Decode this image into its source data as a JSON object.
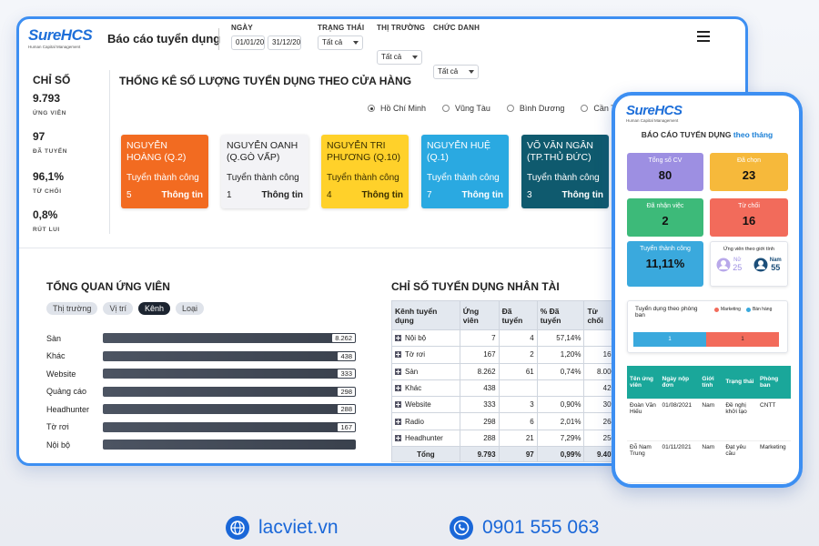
{
  "header": {
    "logo": "SureHCS",
    "logo_tagline": "Human Capital Management",
    "title": "Báo cáo tuyển dụng",
    "date_filter": {
      "label": "NGÀY",
      "from": "01/01/20",
      "to": "31/12/20"
    },
    "filters": [
      {
        "label": "TRẠNG THÁI",
        "value": "Tất cả"
      },
      {
        "label": "THỊ TRƯỜNG",
        "value": "Tất cả"
      },
      {
        "label": "CHỨC DANH",
        "value": "Tất cả"
      }
    ]
  },
  "stats": {
    "title": "CHỈ SỐ",
    "items": [
      {
        "value": "9.793",
        "label": "ỨNG VIÊN"
      },
      {
        "value": "97",
        "label": "ĐÃ TUYỂN"
      },
      {
        "value": "96,1%",
        "label": "TỪ CHỐI"
      },
      {
        "value": "0,8%",
        "label": "RÚT LUI"
      }
    ]
  },
  "stores": {
    "title": "THỐNG KÊ SỐ LƯỢNG TUYỂN DỤNG THEO CỬA HÀNG",
    "regions": [
      "Hồ Chí Minh",
      "Vũng Tàu",
      "Bình Dương",
      "Cần Thơ"
    ],
    "selected_region": 0,
    "success_label": "Tuyển thành công",
    "info_label": "Thông tin",
    "cards": [
      {
        "name": "NGUYỄN HOÀNG (Q.2)",
        "count": "5",
        "color": "#f26b21",
        "text_color": "#ffffff"
      },
      {
        "name": "NGUYỄN OANH (Q.GÒ VẤP)",
        "count": "1",
        "color": "#f3f3f6",
        "text_color": "#222222"
      },
      {
        "name": "NGUYỄN TRI PHƯƠNG (Q.10)",
        "count": "4",
        "color": "#ffd12a",
        "text_color": "#3a2f00"
      },
      {
        "name": "NGUYỄN HUỆ (Q.1)",
        "count": "7",
        "color": "#2aa9e1",
        "text_color": "#ffffff"
      },
      {
        "name": "VÕ VĂN NGÂN (TP.THỦ ĐỨC)",
        "count": "3",
        "color": "#0f5a6e",
        "text_color": "#ffffff"
      }
    ]
  },
  "candidates": {
    "title": "TỔNG QUAN ỨNG VIÊN",
    "tabs": [
      "Thị trường",
      "Vị trí",
      "Kênh",
      "Loại"
    ],
    "active_tab": 2,
    "rows": [
      {
        "label": "Sàn",
        "value": "8.262"
      },
      {
        "label": "Khác",
        "value": "438"
      },
      {
        "label": "Website",
        "value": "333"
      },
      {
        "label": "Quảng cáo",
        "value": "298"
      },
      {
        "label": "Headhunter",
        "value": "288"
      },
      {
        "label": "Tờ rơi",
        "value": "167"
      },
      {
        "label": "Nội bộ"
      }
    ]
  },
  "talent": {
    "title": "CHỈ SỐ TUYỂN DỤNG NHÂN TÀI",
    "columns": [
      "Kênh tuyển dụng",
      "Ứng viên",
      "Đã tuyển",
      "% Đã tuyển",
      "Từ chối"
    ],
    "rows": [
      [
        "Nội bộ",
        "7",
        "4",
        "57,14%",
        "3"
      ],
      [
        "Tờ rơi",
        "167",
        "2",
        "1,20%",
        "161"
      ],
      [
        "Sàn",
        "8.262",
        "61",
        "0,74%",
        "8.000"
      ],
      [
        "Khác",
        "438",
        "",
        "",
        "420"
      ],
      [
        "Website",
        "333",
        "3",
        "0,90%",
        "309"
      ],
      [
        "Radio",
        "298",
        "6",
        "2,01%",
        "264"
      ],
      [
        "Headhunter",
        "288",
        "21",
        "7,29%",
        "250"
      ]
    ],
    "total": [
      "Tổng",
      "9.793",
      "97",
      "0,99%",
      "9.407"
    ]
  },
  "mobile": {
    "logo": "SureHCS",
    "logo_tagline": "Human Capital Management",
    "title": "BÁO CÁO TUYỂN DỤNG",
    "title_suffix": "theo tháng",
    "tiles": [
      {
        "label": "Tổng số CV",
        "value": "80",
        "color": "#9d8fe2"
      },
      {
        "label": "Đã chọn",
        "value": "23",
        "color": "#f6b93b"
      },
      {
        "label": "Đã nhận việc",
        "value": "2",
        "color": "#3dba79"
      },
      {
        "label": "Từ chối",
        "value": "16",
        "color": "#f26b5b"
      },
      {
        "label": "Tuyển thành công",
        "value": "11,11%",
        "color": "#3aa9dd"
      }
    ],
    "gender": {
      "title": "Ứng viên theo giới tính",
      "female_label": "Nữ",
      "female": "25",
      "male_label": "Nam",
      "male": "55"
    },
    "departments": {
      "title": "Tuyển dụng theo phòng ban",
      "legend": [
        {
          "name": "Marketing",
          "color": "#f26b5b"
        },
        {
          "name": "Bán hàng",
          "color": "#3aa9dd"
        }
      ],
      "values": [
        "1",
        "1"
      ]
    },
    "table": {
      "columns": [
        "Tên ứng viên",
        "Ngày nộp đơn",
        "Giới tính",
        "Trạng thái",
        "Phòng ban"
      ],
      "rows": [
        [
          "Đoàn Văn Hiếu",
          "01/08/2021",
          "Nam",
          "Đề nghị khởi tạo",
          "CNTT"
        ],
        [
          "Đỗ Nam Trung",
          "01/11/2021",
          "Nam",
          "Đạt yêu cầu",
          "Marketing"
        ]
      ]
    }
  },
  "footer": {
    "website": "lacviet.vn",
    "phone": "0901 555 063"
  }
}
